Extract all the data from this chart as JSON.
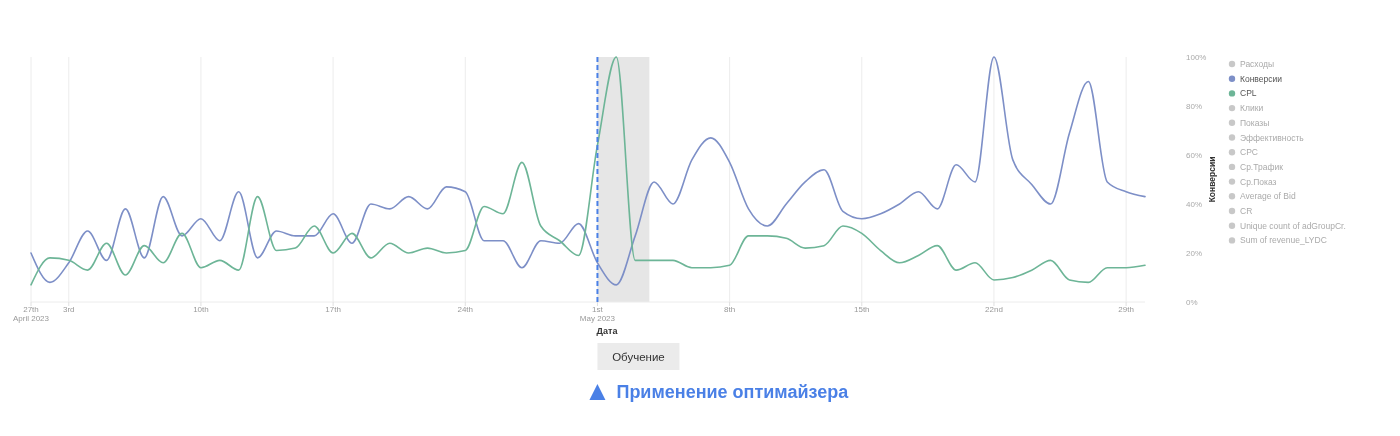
{
  "chart_data": {
    "type": "line",
    "x": [
      "2023-04-01",
      "2023-04-02",
      "2023-04-03",
      "2023-04-04",
      "2023-04-05",
      "2023-04-06",
      "2023-04-07",
      "2023-04-08",
      "2023-04-09",
      "2023-04-10",
      "2023-04-11",
      "2023-04-12",
      "2023-04-13",
      "2023-04-14",
      "2023-04-15",
      "2023-04-16",
      "2023-04-17",
      "2023-04-18",
      "2023-04-19",
      "2023-04-20",
      "2023-04-21",
      "2023-04-22",
      "2023-04-23",
      "2023-04-24",
      "2023-04-25",
      "2023-04-26",
      "2023-04-27",
      "2023-04-28",
      "2023-04-29",
      "2023-04-30",
      "2023-05-01",
      "2023-05-02",
      "2023-05-03",
      "2023-05-04",
      "2023-05-05",
      "2023-05-06",
      "2023-05-07",
      "2023-05-08",
      "2023-05-09",
      "2023-05-10",
      "2023-05-11",
      "2023-05-12",
      "2023-05-13",
      "2023-05-14",
      "2023-05-15",
      "2023-05-16",
      "2023-05-17",
      "2023-05-18",
      "2023-05-19",
      "2023-05-20",
      "2023-05-21",
      "2023-05-22",
      "2023-05-23",
      "2023-05-24",
      "2023-05-25",
      "2023-05-26",
      "2023-05-27",
      "2023-05-28",
      "2023-05-29",
      "2023-05-30"
    ],
    "series": [
      {
        "name": "Расходы",
        "color": "#c8c8c8",
        "values": [
          null,
          null,
          null,
          null,
          null,
          null,
          null,
          null,
          null,
          null,
          null,
          null,
          null,
          null,
          null,
          null,
          null,
          null,
          null,
          null,
          null,
          null,
          null,
          null,
          null,
          null,
          null,
          null,
          null,
          null,
          null,
          null,
          null,
          null,
          null,
          null,
          null,
          null,
          null,
          null,
          null,
          null,
          null,
          null,
          null,
          null,
          null,
          null,
          null,
          null,
          null,
          null,
          null,
          null,
          null,
          null,
          null,
          null,
          null,
          null
        ]
      },
      {
        "name": "Конверсии",
        "color": "#7d8fc7",
        "values": [
          20,
          8,
          16,
          29,
          17,
          38,
          18,
          43,
          27,
          34,
          25,
          45,
          18,
          29,
          27,
          27,
          36,
          24,
          40,
          38,
          43,
          38,
          47,
          45,
          25,
          25,
          14,
          25,
          24,
          32,
          16,
          7,
          27,
          49,
          40,
          58,
          67,
          57,
          38,
          31,
          40,
          49,
          54,
          37,
          34,
          36,
          40,
          45,
          38,
          56,
          49,
          100,
          58,
          48,
          40,
          69,
          90,
          49,
          45,
          43
        ]
      },
      {
        "name": "CPL",
        "color": "#6db597",
        "values": [
          7,
          18,
          17,
          13,
          24,
          11,
          23,
          16,
          28,
          14,
          17,
          13,
          43,
          21,
          22,
          31,
          20,
          28,
          18,
          24,
          20,
          22,
          20,
          21,
          39,
          36,
          57,
          31,
          25,
          19,
          64,
          100,
          17,
          17,
          17,
          14,
          14,
          15,
          27,
          27,
          26,
          22,
          23,
          31,
          28,
          21,
          16,
          19,
          23,
          13,
          16,
          9,
          10,
          13,
          17,
          9,
          8,
          14,
          14,
          15
        ]
      },
      {
        "name": "Клики",
        "color": "#c8c8c8",
        "values": [
          null,
          null,
          null,
          null,
          null,
          null,
          null,
          null,
          null,
          null,
          null,
          null,
          null,
          null,
          null,
          null,
          null,
          null,
          null,
          null,
          null,
          null,
          null,
          null,
          null,
          null,
          null,
          null,
          null,
          null,
          null,
          null,
          null,
          null,
          null,
          null,
          null,
          null,
          null,
          null,
          null,
          null,
          null,
          null,
          null,
          null,
          null,
          null,
          null,
          null,
          null,
          null,
          null,
          null,
          null,
          null,
          null,
          null,
          null,
          null
        ]
      },
      {
        "name": "Показы",
        "color": "#c8c8c8",
        "values": [
          null,
          null,
          null,
          null,
          null,
          null,
          null,
          null,
          null,
          null,
          null,
          null,
          null,
          null,
          null,
          null,
          null,
          null,
          null,
          null,
          null,
          null,
          null,
          null,
          null,
          null,
          null,
          null,
          null,
          null,
          null,
          null,
          null,
          null,
          null,
          null,
          null,
          null,
          null,
          null,
          null,
          null,
          null,
          null,
          null,
          null,
          null,
          null,
          null,
          null,
          null,
          null,
          null,
          null,
          null,
          null,
          null,
          null,
          null,
          null
        ]
      },
      {
        "name": "Эффективность",
        "color": "#c8c8c8",
        "values": [
          null,
          null,
          null,
          null,
          null,
          null,
          null,
          null,
          null,
          null,
          null,
          null,
          null,
          null,
          null,
          null,
          null,
          null,
          null,
          null,
          null,
          null,
          null,
          null,
          null,
          null,
          null,
          null,
          null,
          null,
          null,
          null,
          null,
          null,
          null,
          null,
          null,
          null,
          null,
          null,
          null,
          null,
          null,
          null,
          null,
          null,
          null,
          null,
          null,
          null,
          null,
          null,
          null,
          null,
          null,
          null,
          null,
          null,
          null,
          null
        ]
      },
      {
        "name": "CPC",
        "color": "#c8c8c8",
        "values": [
          null,
          null,
          null,
          null,
          null,
          null,
          null,
          null,
          null,
          null,
          null,
          null,
          null,
          null,
          null,
          null,
          null,
          null,
          null,
          null,
          null,
          null,
          null,
          null,
          null,
          null,
          null,
          null,
          null,
          null,
          null,
          null,
          null,
          null,
          null,
          null,
          null,
          null,
          null,
          null,
          null,
          null,
          null,
          null,
          null,
          null,
          null,
          null,
          null,
          null,
          null,
          null,
          null,
          null,
          null,
          null,
          null,
          null,
          null,
          null
        ]
      },
      {
        "name": "Ср.Трафик",
        "color": "#c8c8c8",
        "values": [
          null,
          null,
          null,
          null,
          null,
          null,
          null,
          null,
          null,
          null,
          null,
          null,
          null,
          null,
          null,
          null,
          null,
          null,
          null,
          null,
          null,
          null,
          null,
          null,
          null,
          null,
          null,
          null,
          null,
          null,
          null,
          null,
          null,
          null,
          null,
          null,
          null,
          null,
          null,
          null,
          null,
          null,
          null,
          null,
          null,
          null,
          null,
          null,
          null,
          null,
          null,
          null,
          null,
          null,
          null,
          null,
          null,
          null,
          null,
          null
        ]
      },
      {
        "name": "Ср.Показ",
        "color": "#c8c8c8",
        "values": [
          null,
          null,
          null,
          null,
          null,
          null,
          null,
          null,
          null,
          null,
          null,
          null,
          null,
          null,
          null,
          null,
          null,
          null,
          null,
          null,
          null,
          null,
          null,
          null,
          null,
          null,
          null,
          null,
          null,
          null,
          null,
          null,
          null,
          null,
          null,
          null,
          null,
          null,
          null,
          null,
          null,
          null,
          null,
          null,
          null,
          null,
          null,
          null,
          null,
          null,
          null,
          null,
          null,
          null,
          null,
          null,
          null,
          null,
          null,
          null
        ]
      },
      {
        "name": "Average of Bid",
        "color": "#c8c8c8",
        "values": [
          null,
          null,
          null,
          null,
          null,
          null,
          null,
          null,
          null,
          null,
          null,
          null,
          null,
          null,
          null,
          null,
          null,
          null,
          null,
          null,
          null,
          null,
          null,
          null,
          null,
          null,
          null,
          null,
          null,
          null,
          null,
          null,
          null,
          null,
          null,
          null,
          null,
          null,
          null,
          null,
          null,
          null,
          null,
          null,
          null,
          null,
          null,
          null,
          null,
          null,
          null,
          null,
          null,
          null,
          null,
          null,
          null,
          null,
          null,
          null
        ]
      },
      {
        "name": "CR",
        "color": "#c8c8c8",
        "values": [
          null,
          null,
          null,
          null,
          null,
          null,
          null,
          null,
          null,
          null,
          null,
          null,
          null,
          null,
          null,
          null,
          null,
          null,
          null,
          null,
          null,
          null,
          null,
          null,
          null,
          null,
          null,
          null,
          null,
          null,
          null,
          null,
          null,
          null,
          null,
          null,
          null,
          null,
          null,
          null,
          null,
          null,
          null,
          null,
          null,
          null,
          null,
          null,
          null,
          null,
          null,
          null,
          null,
          null,
          null,
          null,
          null,
          null,
          null,
          null
        ]
      },
      {
        "name": "Unique count of adGroupCr.",
        "color": "#c8c8c8",
        "values": [
          null,
          null,
          null,
          null,
          null,
          null,
          null,
          null,
          null,
          null,
          null,
          null,
          null,
          null,
          null,
          null,
          null,
          null,
          null,
          null,
          null,
          null,
          null,
          null,
          null,
          null,
          null,
          null,
          null,
          null,
          null,
          null,
          null,
          null,
          null,
          null,
          null,
          null,
          null,
          null,
          null,
          null,
          null,
          null,
          null,
          null,
          null,
          null,
          null,
          null,
          null,
          null,
          null,
          null,
          null,
          null,
          null,
          null,
          null,
          null
        ]
      },
      {
        "name": "Sum of revenue_LYDC",
        "color": "#c8c8c8",
        "values": [
          null,
          null,
          null,
          null,
          null,
          null,
          null,
          null,
          null,
          null,
          null,
          null,
          null,
          null,
          null,
          null,
          null,
          null,
          null,
          null,
          null,
          null,
          null,
          null,
          null,
          null,
          null,
          null,
          null,
          null,
          null,
          null,
          null,
          null,
          null,
          null,
          null,
          null,
          null,
          null,
          null,
          null,
          null,
          null,
          null,
          null,
          null,
          null,
          null,
          null,
          null,
          null,
          null,
          null,
          null,
          null,
          null,
          null,
          null,
          null
        ]
      }
    ],
    "xlim": [
      "2023-04-01",
      "2023-05-30"
    ],
    "xticks": [
      {
        "value": "2023-04-01",
        "label": null
      },
      {
        "value": "2023-04-03",
        "label": "3rd"
      },
      {
        "value": "2023-04-10",
        "label": "10th"
      },
      {
        "value": "2023-04-17",
        "label": "17th"
      },
      {
        "value": "2023-04-24",
        "label": "24th"
      },
      {
        "value": "2023-05-01",
        "label": "1st\nMay 2023"
      },
      {
        "value": "2023-05-08",
        "label": "8th"
      },
      {
        "value": "2023-05-15",
        "label": "15th"
      },
      {
        "value": "2023-05-22",
        "label": "22nd"
      },
      {
        "value": "2023-05-29",
        "label": "29th"
      }
    ],
    "ylim": [
      0,
      100
    ],
    "yticks": [
      {
        "value": 0,
        "label": "0%"
      },
      {
        "value": 20,
        "label": "20%"
      },
      {
        "value": 40,
        "label": "40%"
      },
      {
        "value": 60,
        "label": "60%"
      },
      {
        "value": 80,
        "label": "80%"
      },
      {
        "value": 100,
        "label": "100%"
      }
    ],
    "xlabel": "Дата",
    "ylabel": "Конверсии",
    "grid": "x",
    "legend": "right",
    "ref_lines": [
      {
        "axis": "x",
        "value": "2023-05-01",
        "label": "Применение оптимайзера",
        "color": "#4a80e6",
        "line_style": "dashed"
      }
    ],
    "bands": [
      {
        "axis": "x",
        "from": "2023-05-01",
        "to": "2023-05-03T18:00",
        "color": "#e6e6e6"
      }
    ],
    "annotations": [
      "27th\nApril 2023",
      "Обучение"
    ]
  }
}
